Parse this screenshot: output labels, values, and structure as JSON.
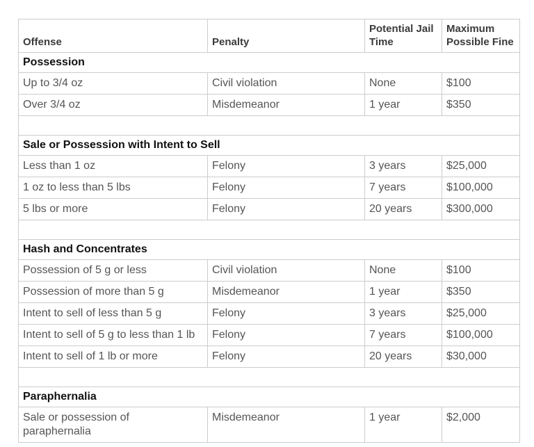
{
  "table": {
    "columns": [
      {
        "label": "Offense"
      },
      {
        "label": "Penalty"
      },
      {
        "label": "Potential Jail Time"
      },
      {
        "label": "Maximum Possible Fine"
      }
    ],
    "sections": [
      {
        "title": "Possession",
        "rows": [
          [
            "Up to 3/4 oz",
            "Civil violation",
            "None",
            "$100"
          ],
          [
            "Over 3/4 oz",
            "Misdemeanor",
            "1 year",
            "$350"
          ]
        ]
      },
      {
        "title": "Sale or Possession with Intent to Sell",
        "rows": [
          [
            "Less than 1 oz",
            "Felony",
            "3 years",
            "$25,000"
          ],
          [
            "1 oz to less than 5 lbs",
            "Felony",
            "7 years",
            "$100,000"
          ],
          [
            "5 lbs or more",
            "Felony",
            "20 years",
            "$300,000"
          ]
        ]
      },
      {
        "title": "Hash and Concentrates",
        "rows": [
          [
            "Possession of 5 g or less",
            "Civil violation",
            "None",
            "$100"
          ],
          [
            "Possession of more than 5 g",
            "Misdemeanor",
            "1 year",
            "$350"
          ],
          [
            "Intent to sell of less than 5 g",
            "Felony",
            "3 years",
            "$25,000"
          ],
          [
            "Intent to sell of 5 g to less than 1 lb",
            "Felony",
            "7 years",
            "$100,000"
          ],
          [
            "Intent to sell of 1 lb or more",
            "Felony",
            "20 years",
            "$30,000"
          ]
        ]
      },
      {
        "title": "Paraphernalia",
        "rows": [
          [
            "Sale or possession of paraphernalia",
            "Misdemeanor",
            "1 year",
            "$2,000"
          ]
        ]
      }
    ],
    "colors": {
      "border": "#cccccc",
      "header_text": "#3b3b3b",
      "section_text": "#111111",
      "body_text": "#555555",
      "background": "#ffffff"
    }
  }
}
